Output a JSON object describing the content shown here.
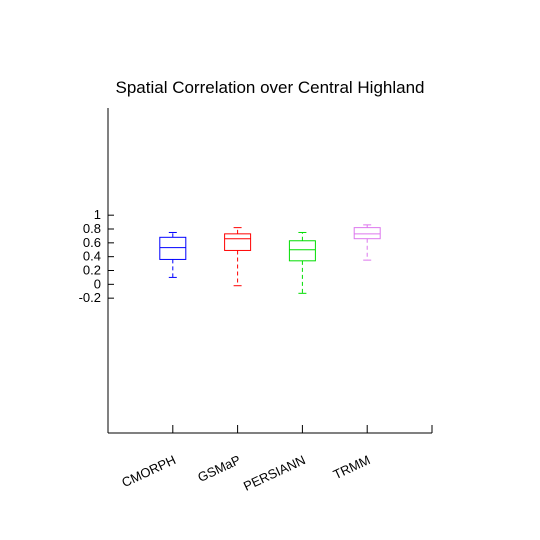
{
  "chart_data": {
    "type": "box",
    "title": "Spatial Correlation over Central Highland",
    "xlabel": "",
    "ylabel": "",
    "ylim": [
      -2.15,
      2.55
    ],
    "yticks": [
      -0.2,
      0,
      0.2,
      0.4,
      0.6,
      0.8,
      1
    ],
    "ytick_labels": [
      "-0.2",
      "0",
      "0.2",
      "0.4",
      "0.6",
      "0.8",
      "1"
    ],
    "categories": [
      "CMORPH",
      "GSMaP",
      "PERSIANN",
      "TRMM"
    ],
    "grid": false,
    "boxes": [
      {
        "category": "CMORPH",
        "color": "#0000ff",
        "whisker_low": 0.1,
        "q1": 0.36,
        "median": 0.53,
        "q3": 0.68,
        "whisker_high": 0.75
      },
      {
        "category": "GSMaP",
        "color": "#ff0000",
        "whisker_low": -0.02,
        "q1": 0.49,
        "median": 0.66,
        "q3": 0.73,
        "whisker_high": 0.82
      },
      {
        "category": "PERSIANN",
        "color": "#00dd00",
        "whisker_low": -0.13,
        "q1": 0.34,
        "median": 0.5,
        "q3": 0.63,
        "whisker_high": 0.75
      },
      {
        "category": "TRMM",
        "color": "#dd77ee",
        "whisker_low": 0.35,
        "q1": 0.66,
        "median": 0.73,
        "q3": 0.82,
        "whisker_high": 0.86
      }
    ]
  }
}
